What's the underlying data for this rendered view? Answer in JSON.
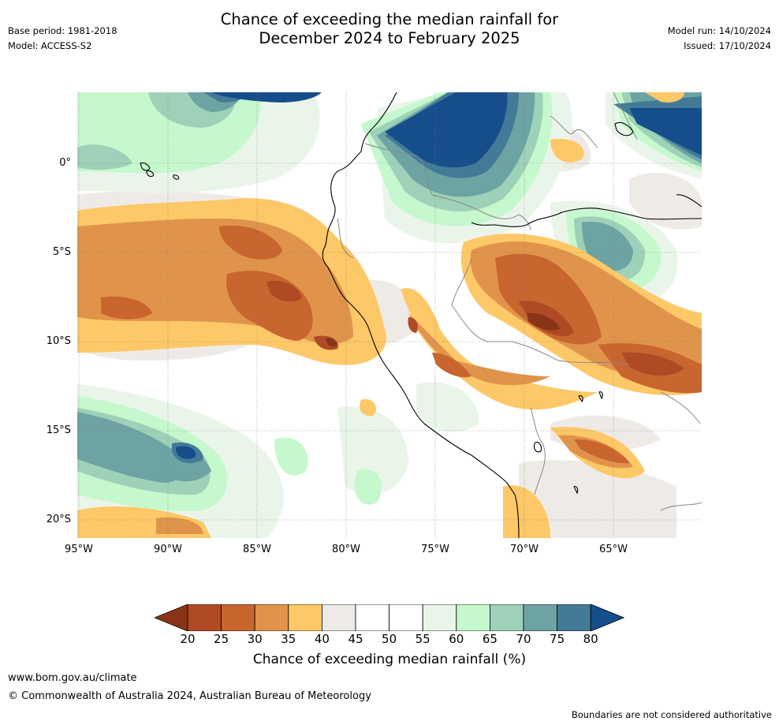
{
  "header": {
    "title_line1": "Chance of exceeding the median rainfall for",
    "title_line2": "December 2024 to February 2025",
    "base_period": "Base period: 1981-2018",
    "model": "Model: ACCESS-S2",
    "model_run": "Model run: 14/10/2024",
    "issued": "Issued: 17/10/2024"
  },
  "map": {
    "lat_labels": [
      "0°",
      "5°S",
      "10°S",
      "15°S",
      "20°S"
    ],
    "lon_labels": [
      "95°W",
      "90°W",
      "85°W",
      "80°W",
      "75°W",
      "70°W",
      "65°W"
    ]
  },
  "legend": {
    "ticks": [
      "20",
      "25",
      "30",
      "35",
      "40",
      "45",
      "50",
      "55",
      "60",
      "65",
      "70",
      "75",
      "80"
    ],
    "colors": [
      "#8a3417",
      "#b04a24",
      "#c9652f",
      "#e0944b",
      "#fdc867",
      "#eeeae6",
      "#ffffff",
      "#ffffff",
      "#eaf5ea",
      "#c5f8cc",
      "#9dd2b8",
      "#6ea3a4",
      "#437a98",
      "#164e8b"
    ],
    "label": "Chance of exceeding median rainfall (%)"
  },
  "footer": {
    "website": "www.bom.gov.au/climate",
    "copyright": "© Commonwealth of Australia 2024, Australian Bureau of Meteorology",
    "disclaimer": "Boundaries are not considered authoritative"
  }
}
